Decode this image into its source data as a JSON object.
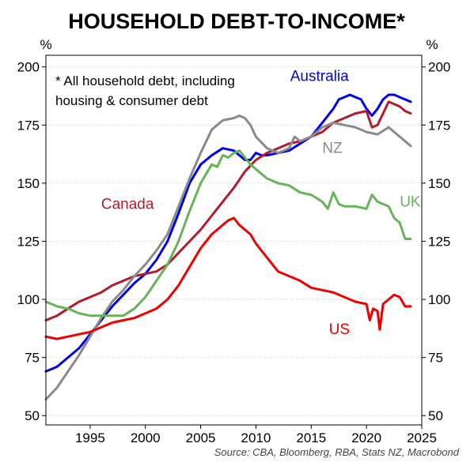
{
  "chart_data": {
    "type": "line",
    "title": "HOUSEHOLD DEBT-TO-INCOME*",
    "note_lines": [
      "*  All household debt, including",
      "housing & consumer debt"
    ],
    "source": "Source: CBA, Bloomberg, RBA, Stats NZ, Macrobond",
    "y_unit_left": "%",
    "y_unit_right": "%",
    "xlim": [
      1991,
      2025
    ],
    "ylim": [
      46,
      205
    ],
    "x_ticks": [
      "1995",
      "2000",
      "2005",
      "2010",
      "2015",
      "2020",
      "2025"
    ],
    "y_ticks": [
      "50",
      "75",
      "100",
      "125",
      "150",
      "175",
      "200"
    ],
    "grid": true,
    "series": [
      {
        "name": "Australia",
        "color": "#0000ee",
        "x": [
          1991,
          1992,
          1993,
          1994,
          1995,
          1996,
          1997,
          1998,
          1999,
          2000,
          2001,
          2002,
          2003,
          2004,
          2005,
          2006,
          2007,
          2008,
          2008.5,
          2009,
          2009.5,
          2010,
          2010.5,
          2011,
          2012,
          2013,
          2014,
          2015,
          2016,
          2017,
          2017.5,
          2018,
          2018.5,
          2019,
          2019.5,
          2020,
          2020.5,
          2021,
          2021.5,
          2022,
          2022.5,
          2023,
          2023.5,
          2024
        ],
        "y": [
          69,
          71,
          75,
          79,
          85,
          91,
          97,
          102,
          107,
          111,
          117,
          125,
          137,
          150,
          158,
          162,
          165,
          164,
          162,
          160,
          160,
          163,
          162,
          162,
          163,
          164,
          167,
          170,
          176,
          182,
          186,
          187,
          188,
          187,
          186,
          182,
          179,
          182,
          186,
          188,
          188,
          187,
          186,
          185
        ]
      },
      {
        "name": "Canada",
        "color": "#b01c2e",
        "x": [
          1991,
          1992,
          1993,
          1994,
          1995,
          1996,
          1997,
          1998,
          1999,
          2000,
          2001,
          2002,
          2003,
          2004,
          2005,
          2006,
          2007,
          2008,
          2009,
          2010,
          2011,
          2012,
          2013,
          2014,
          2015,
          2016,
          2017,
          2018,
          2019,
          2020,
          2020.5,
          2021,
          2021.5,
          2022,
          2022.5,
          2023,
          2023.5,
          2024
        ],
        "y": [
          91,
          93,
          96,
          99,
          101,
          103,
          106,
          108,
          110,
          111,
          112,
          115,
          120,
          125,
          130,
          136,
          142,
          148,
          155,
          160,
          163,
          165,
          167,
          168,
          170,
          172,
          176,
          178,
          180,
          181,
          174,
          175,
          180,
          185,
          184,
          183,
          181,
          180
        ]
      },
      {
        "name": "NZ",
        "color": "#8a8a8a",
        "x": [
          1991,
          1992,
          1993,
          1994,
          1995,
          1996,
          1997,
          1998,
          1999,
          2000,
          2001,
          2002,
          2003,
          2004,
          2005,
          2006,
          2007,
          2008,
          2008.5,
          2009,
          2009.5,
          2010,
          2011,
          2012,
          2013,
          2013.5,
          2014,
          2015,
          2016,
          2017,
          2018,
          2019,
          2020,
          2021,
          2022,
          2022.5,
          2023,
          2023.5,
          2024
        ],
        "y": [
          57,
          62,
          69,
          76,
          84,
          92,
          99,
          104,
          110,
          115,
          121,
          128,
          140,
          152,
          163,
          173,
          177,
          178,
          179,
          178,
          175,
          170,
          165,
          163,
          165,
          170,
          168,
          170,
          174,
          176,
          175,
          174,
          172,
          171,
          174,
          172,
          170,
          168,
          166
        ]
      },
      {
        "name": "UK",
        "color": "#66b35a",
        "x": [
          1991,
          1991.5,
          1992,
          1993,
          1994,
          1995,
          1996,
          1997,
          1998,
          1999,
          2000,
          2001,
          2002,
          2003,
          2004,
          2005,
          2006,
          2006.5,
          2007,
          2007.5,
          2008,
          2008.5,
          2009,
          2009.5,
          2010,
          2011,
          2012,
          2013,
          2014,
          2015,
          2016,
          2016.5,
          2017,
          2017.5,
          2018,
          2019,
          2020,
          2020.5,
          2021,
          2021.5,
          2022,
          2022.5,
          2023,
          2023.5,
          2024
        ],
        "y": [
          99,
          98,
          97,
          96,
          94,
          93,
          93,
          93,
          93,
          96,
          101,
          108,
          115,
          125,
          138,
          150,
          158,
          157,
          162,
          161,
          163,
          164,
          161,
          158,
          156,
          152,
          150,
          149,
          146,
          145,
          142,
          139,
          146,
          141,
          140,
          140,
          139,
          145,
          142,
          141,
          140,
          135,
          133,
          126,
          126
        ]
      },
      {
        "name": "US",
        "color": "#ee0000",
        "x": [
          1991,
          1992,
          1993,
          1994,
          1995,
          1996,
          1997,
          1998,
          1999,
          2000,
          2001,
          2002,
          2003,
          2004,
          2005,
          2006,
          2007,
          2007.5,
          2008,
          2008.5,
          2009,
          2009.5,
          2010,
          2011,
          2012,
          2013,
          2014,
          2015,
          2016,
          2017,
          2018,
          2019,
          2020,
          2020.3,
          2020.6,
          2021,
          2021.2,
          2021.5,
          2022,
          2022.5,
          2023,
          2023.5,
          2024
        ],
        "y": [
          84,
          83,
          84,
          85,
          86,
          88,
          90,
          91,
          92,
          94,
          96,
          100,
          106,
          114,
          122,
          128,
          132,
          134,
          135,
          132,
          130,
          128,
          124,
          118,
          112,
          110,
          108,
          105,
          104,
          103,
          101,
          99,
          98,
          91,
          96,
          95,
          87,
          98,
          100,
          102,
          101,
          97,
          97
        ]
      }
    ],
    "labels": [
      {
        "text": "Australia",
        "series": "Australia"
      },
      {
        "text": "Canada",
        "series": "Canada"
      },
      {
        "text": "NZ",
        "series": "NZ"
      },
      {
        "text": "UK",
        "series": "UK"
      },
      {
        "text": "US",
        "series": "US"
      }
    ]
  }
}
